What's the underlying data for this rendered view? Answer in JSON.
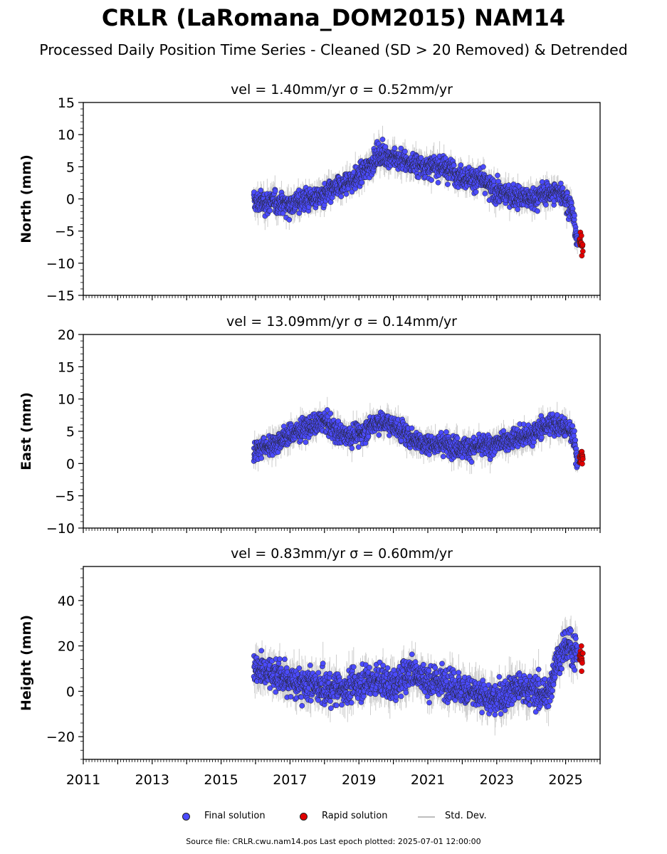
{
  "title": "CRLR (LaRomana_DOM2015) NAM14",
  "subtitle": "Processed Daily Position Time Series - Cleaned (SD > 20 Removed) & Detrended",
  "legend": {
    "final": "Final solution",
    "rapid": "Rapid solution",
    "std": "Std. Dev."
  },
  "source": "Source file: CRLR.cwu.nam14.pos  Last epoch plotted: 2025-07-01 12:00:00",
  "colors": {
    "final": "#4b4bff",
    "rapid": "#e00000",
    "stddev": "#bdbdbd",
    "edge": "#222222"
  },
  "chart_data": [
    {
      "type": "scatter",
      "title": "vel = 1.40mm/yr   σ = 0.52mm/yr",
      "ylabel": "North (mm)",
      "xlim": [
        2011,
        2026
      ],
      "ylim": [
        -15,
        15
      ],
      "yticks": [
        -15,
        -10,
        -5,
        0,
        5,
        10,
        15
      ],
      "xticks": [
        2011,
        2013,
        2015,
        2017,
        2019,
        2021,
        2023,
        2025
      ],
      "series": [
        {
          "name": "Final solution",
          "x": [
            2015.95,
            2016.5,
            2017.0,
            2017.5,
            2018.0,
            2018.5,
            2019.0,
            2019.2,
            2019.6,
            2020.0,
            2020.5,
            2021.0,
            2021.5,
            2022.0,
            2022.5,
            2023.0,
            2023.5,
            2024.0,
            2024.5,
            2024.9,
            2025.2,
            2025.35
          ],
          "y": [
            -0.5,
            -0.5,
            -0.8,
            0.0,
            0.5,
            2.0,
            3.5,
            4.5,
            7.0,
            6.5,
            5.5,
            5.0,
            5.0,
            3.5,
            3.0,
            1.0,
            0.5,
            0.0,
            1.0,
            1.0,
            -2.0,
            -7.0
          ]
        },
        {
          "name": "Rapid solution",
          "x": [
            2025.4,
            2025.5
          ],
          "y": [
            -6.5,
            -7.5
          ]
        }
      ],
      "noise_sd": 1.6
    },
    {
      "type": "scatter",
      "title": "vel = 13.09mm/yr   σ = 0.14mm/yr",
      "ylabel": "East (mm)",
      "xlim": [
        2011,
        2026
      ],
      "ylim": [
        -10,
        20
      ],
      "yticks": [
        -10,
        -5,
        0,
        5,
        10,
        15,
        20
      ],
      "xticks": [
        2011,
        2013,
        2015,
        2017,
        2019,
        2021,
        2023,
        2025
      ],
      "series": [
        {
          "name": "Final solution",
          "x": [
            2015.95,
            2016.5,
            2017.0,
            2017.5,
            2018.0,
            2018.5,
            2019.0,
            2019.5,
            2020.0,
            2020.5,
            2021.0,
            2021.5,
            2022.0,
            2022.5,
            2023.0,
            2023.5,
            2024.0,
            2024.5,
            2024.9,
            2025.2,
            2025.35
          ],
          "y": [
            2.0,
            3.0,
            4.5,
            5.5,
            6.5,
            4.5,
            4.5,
            6.5,
            6.0,
            4.0,
            3.0,
            3.0,
            2.5,
            2.5,
            3.0,
            4.0,
            4.5,
            6.0,
            6.0,
            4.5,
            0.5
          ]
        },
        {
          "name": "Rapid solution",
          "x": [
            2025.4,
            2025.5
          ],
          "y": [
            1.0,
            1.0
          ]
        }
      ],
      "noise_sd": 1.5
    },
    {
      "type": "scatter",
      "title": "vel = 0.83mm/yr   σ = 0.60mm/yr",
      "ylabel": "Height (mm)",
      "xlim": [
        2011,
        2026
      ],
      "ylim": [
        -30,
        55
      ],
      "yticks": [
        -20,
        0,
        20,
        40
      ],
      "xticks": [
        2011,
        2013,
        2015,
        2017,
        2019,
        2021,
        2023,
        2025
      ],
      "series": [
        {
          "name": "Final solution",
          "x": [
            2015.95,
            2016.5,
            2017.0,
            2017.5,
            2018.0,
            2018.5,
            2019.0,
            2019.5,
            2020.0,
            2020.5,
            2021.0,
            2021.5,
            2022.0,
            2022.5,
            2023.0,
            2023.5,
            2024.0,
            2024.5,
            2024.7,
            2025.0,
            2025.35
          ],
          "y": [
            10.0,
            8.0,
            4.0,
            3.0,
            1.0,
            1.0,
            3.0,
            5.0,
            2.0,
            10.0,
            4.0,
            4.0,
            1.0,
            -2.0,
            -4.0,
            2.0,
            0.0,
            -2.0,
            12.0,
            20.0,
            18.0
          ]
        },
        {
          "name": "Rapid solution",
          "x": [
            2025.4,
            2025.5
          ],
          "y": [
            15.0,
            15.0
          ]
        }
      ],
      "noise_sd": 6.5
    }
  ]
}
